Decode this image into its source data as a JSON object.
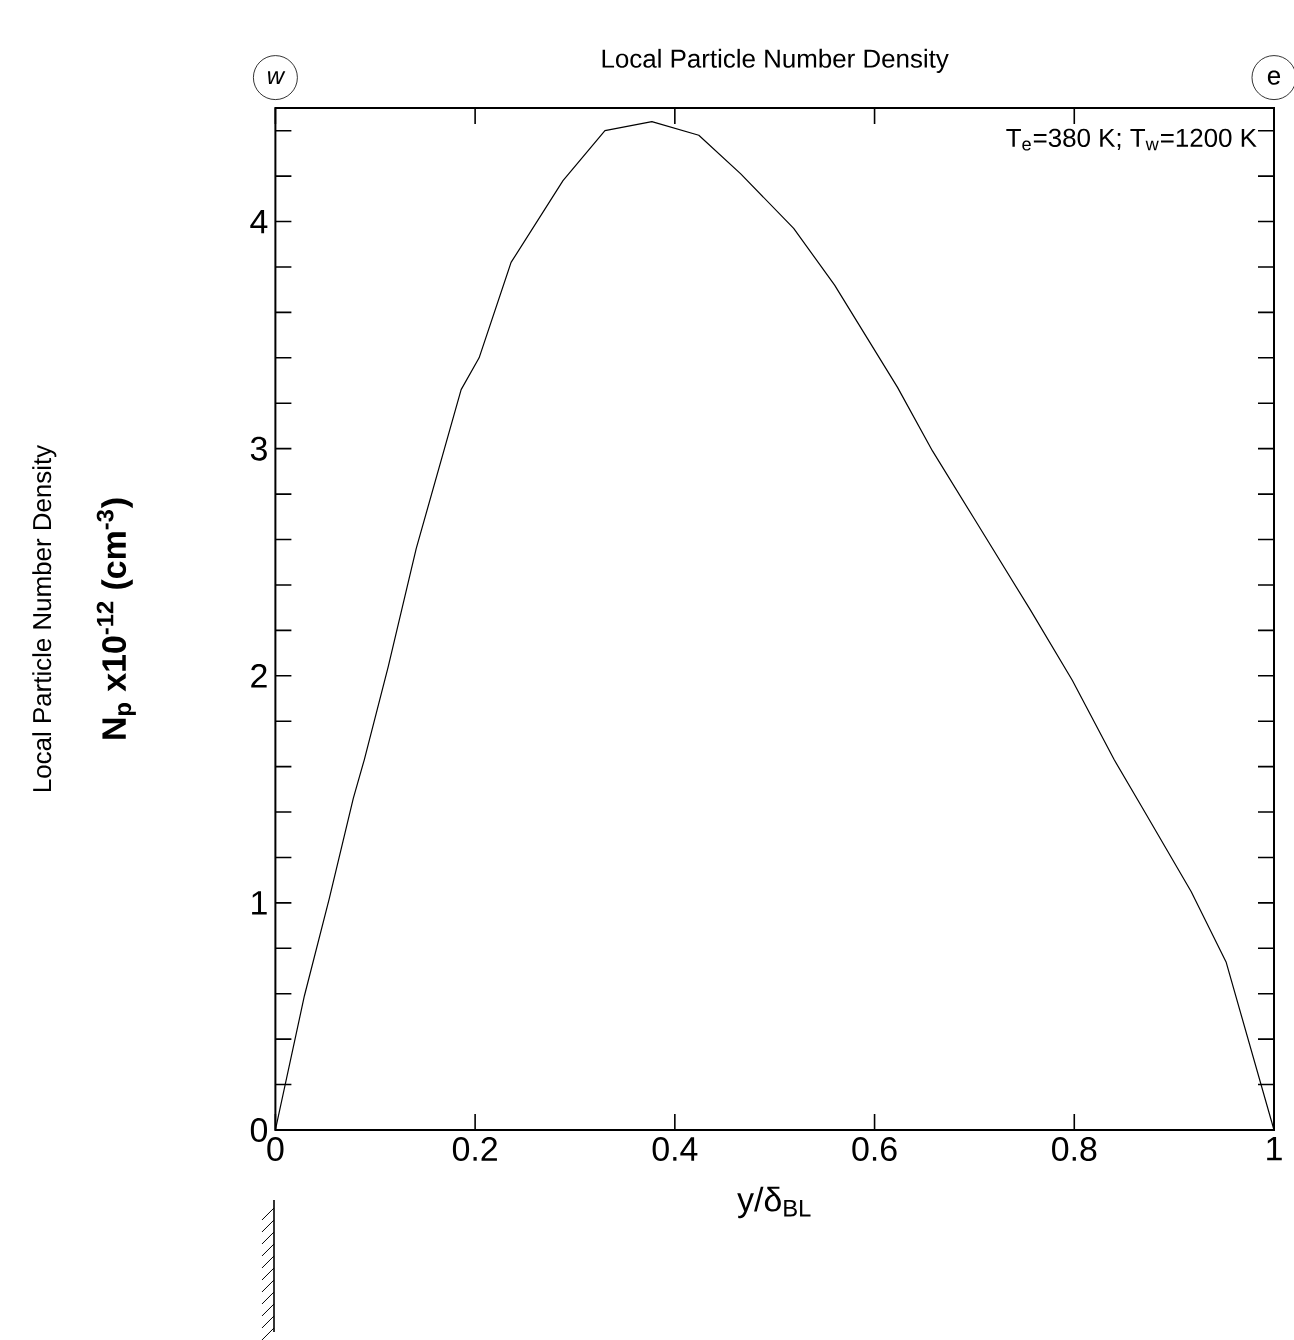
{
  "chart_data": {
    "type": "line",
    "title": "Local Particle Number Density",
    "xlabel": "y/δ$_{BL}$",
    "ylabel": "N$_{p}$ x10$^{-12}$ (cm$^{-3}$)",
    "annotations": [
      "Local Particle Number Density",
      "T$_{e}$=380 K; T$_{w}$=1200 K",
      "w",
      "e"
    ],
    "series": [
      {
        "color": "#000000",
        "x": [
          0,
          0.029,
          0.054,
          0.078,
          0.089,
          0.113,
          0.141,
          0.186,
          0.204,
          0.236,
          0.288,
          0.33,
          0.377,
          0.424,
          0.466,
          0.519,
          0.56,
          0.623,
          0.658,
          0.7,
          0.756,
          0.798,
          0.84,
          0.868,
          0.917,
          0.952,
          1.0
        ],
        "values": [
          0,
          0.59,
          1.02,
          1.46,
          1.63,
          2.04,
          2.56,
          3.26,
          3.4,
          3.82,
          4.18,
          4.4,
          4.44,
          4.38,
          4.21,
          3.97,
          3.72,
          3.27,
          2.99,
          2.69,
          2.29,
          1.98,
          1.63,
          1.42,
          1.05,
          0.74,
          0
        ]
      }
    ],
    "xlim": [
      0,
      1
    ],
    "xticks": [
      0,
      0.2,
      0.4,
      0.6,
      0.8,
      1
    ],
    "ylim": [
      0,
      4.5
    ],
    "yticks": [
      0,
      {
        "value": 0.2,
        "label": null
      },
      {
        "value": 0.4,
        "label": null
      },
      {
        "value": 0.6,
        "label": null
      },
      {
        "value": 0.8,
        "label": null
      },
      1,
      {
        "value": 1.2,
        "label": null
      },
      {
        "value": 1.4,
        "label": null
      },
      {
        "value": 1.6,
        "label": null
      },
      {
        "value": 1.8,
        "label": null
      },
      2,
      {
        "value": 2.2,
        "label": null
      },
      {
        "value": 2.4,
        "label": null
      },
      {
        "value": 2.6,
        "label": null
      },
      {
        "value": 2.8,
        "label": null
      },
      3,
      {
        "value": 3.2,
        "label": null
      },
      {
        "value": 3.4,
        "label": null
      },
      {
        "value": 3.6,
        "label": null
      },
      {
        "value": 3.8,
        "label": null
      },
      4,
      {
        "value": 4.2,
        "label": null
      },
      {
        "value": 4.4,
        "label": null
      }
    ],
    "marker": "none",
    "line_style": "solid"
  }
}
